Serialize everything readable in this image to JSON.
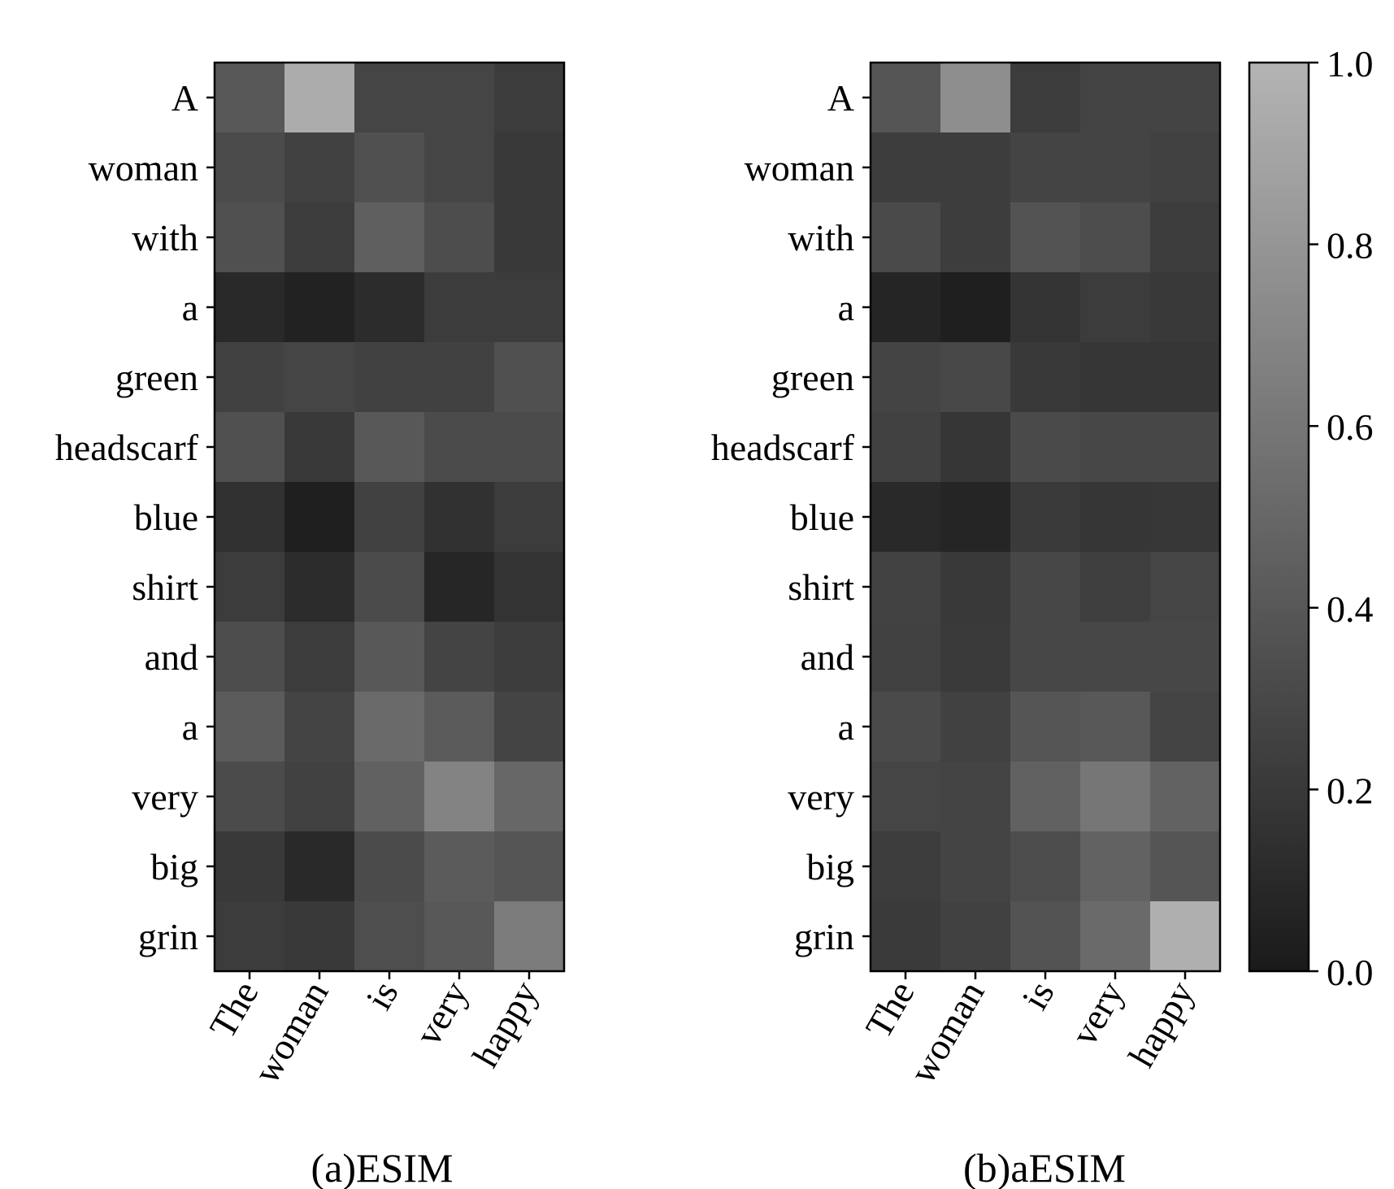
{
  "colorbar": {
    "ticks": [
      0.0,
      0.2,
      0.4,
      0.6,
      0.8,
      1.0
    ],
    "tick_labels": [
      "0.0",
      "0.2",
      "0.4",
      "0.6",
      "0.8",
      "1.0"
    ],
    "range": [
      0.0,
      1.0
    ],
    "low_color": "#1a1a1a",
    "high_color": "#b4b4b4"
  },
  "chart_data": [
    {
      "type": "heatmap",
      "title": "(a)ESIM",
      "x": [
        "The",
        "woman",
        "is",
        "very",
        "happy"
      ],
      "y": [
        "A",
        "woman",
        "with",
        "a",
        "green",
        "headscarf",
        "blue",
        "shirt",
        "and",
        "a",
        "very",
        "big",
        "grin"
      ],
      "values": [
        [
          0.4,
          0.95,
          0.28,
          0.28,
          0.22
        ],
        [
          0.32,
          0.25,
          0.35,
          0.28,
          0.2
        ],
        [
          0.35,
          0.22,
          0.45,
          0.33,
          0.2
        ],
        [
          0.1,
          0.05,
          0.12,
          0.22,
          0.22
        ],
        [
          0.25,
          0.28,
          0.25,
          0.25,
          0.35
        ],
        [
          0.35,
          0.2,
          0.4,
          0.32,
          0.32
        ],
        [
          0.15,
          0.03,
          0.25,
          0.15,
          0.22
        ],
        [
          0.22,
          0.12,
          0.32,
          0.08,
          0.16
        ],
        [
          0.33,
          0.22,
          0.4,
          0.27,
          0.23
        ],
        [
          0.42,
          0.27,
          0.52,
          0.42,
          0.27
        ],
        [
          0.32,
          0.25,
          0.46,
          0.68,
          0.5
        ],
        [
          0.2,
          0.1,
          0.32,
          0.42,
          0.38
        ],
        [
          0.22,
          0.2,
          0.34,
          0.4,
          0.63
        ]
      ]
    },
    {
      "type": "heatmap",
      "title": "(b)aESIM",
      "x": [
        "The",
        "woman",
        "is",
        "very",
        "happy"
      ],
      "y": [
        "A",
        "woman",
        "with",
        "a",
        "green",
        "headscarf",
        "blue",
        "shirt",
        "and",
        "a",
        "very",
        "big",
        "grin"
      ],
      "values": [
        [
          0.38,
          0.75,
          0.22,
          0.27,
          0.27
        ],
        [
          0.23,
          0.23,
          0.27,
          0.27,
          0.25
        ],
        [
          0.31,
          0.23,
          0.37,
          0.33,
          0.23
        ],
        [
          0.07,
          0.03,
          0.17,
          0.22,
          0.2
        ],
        [
          0.27,
          0.3,
          0.2,
          0.18,
          0.18
        ],
        [
          0.25,
          0.18,
          0.31,
          0.29,
          0.29
        ],
        [
          0.1,
          0.07,
          0.21,
          0.18,
          0.19
        ],
        [
          0.26,
          0.2,
          0.29,
          0.24,
          0.28
        ],
        [
          0.25,
          0.21,
          0.29,
          0.29,
          0.29
        ],
        [
          0.31,
          0.25,
          0.38,
          0.4,
          0.27
        ],
        [
          0.28,
          0.27,
          0.46,
          0.6,
          0.47
        ],
        [
          0.22,
          0.27,
          0.33,
          0.47,
          0.38
        ],
        [
          0.21,
          0.25,
          0.37,
          0.52,
          0.97
        ]
      ]
    }
  ]
}
